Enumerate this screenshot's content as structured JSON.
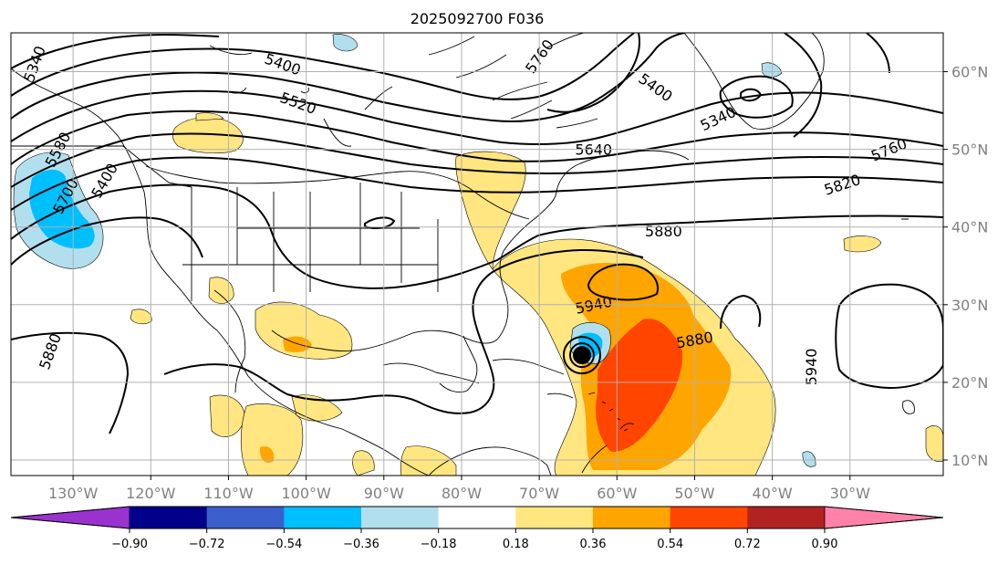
{
  "title": "2025092700 F036",
  "map": {
    "lon_range": [
      -138,
      -18
    ],
    "lat_range": [
      8,
      65
    ],
    "x_ticks": [
      {
        "lon": -130,
        "label": "130°W"
      },
      {
        "lon": -120,
        "label": "120°W"
      },
      {
        "lon": -110,
        "label": "110°W"
      },
      {
        "lon": -100,
        "label": "100°W"
      },
      {
        "lon": -90,
        "label": "90°W"
      },
      {
        "lon": -80,
        "label": "80°W"
      },
      {
        "lon": -70,
        "label": "70°W"
      },
      {
        "lon": -60,
        "label": "60°W"
      },
      {
        "lon": -50,
        "label": "50°W"
      },
      {
        "lon": -40,
        "label": "40°W"
      },
      {
        "lon": -30,
        "label": "30°W"
      }
    ],
    "y_ticks": [
      {
        "lat": 60,
        "label": "60°N"
      },
      {
        "lat": 50,
        "label": "50°N"
      },
      {
        "lat": 40,
        "label": "40°N"
      },
      {
        "lat": 30,
        "label": "30°N"
      },
      {
        "lat": 20,
        "label": "20°N"
      },
      {
        "lat": 10,
        "label": "10°N"
      }
    ],
    "grid": true,
    "contour_labels": [
      {
        "text": "5400",
        "lon": -126,
        "lat": 46,
        "rot": -60
      },
      {
        "text": "5400",
        "lon": -103,
        "lat": 61,
        "rot": 20
      },
      {
        "text": "5520",
        "lon": -101,
        "lat": 56,
        "rot": 20
      },
      {
        "text": "5580",
        "lon": -132,
        "lat": 50,
        "rot": -62
      },
      {
        "text": "5700",
        "lon": -131,
        "lat": 44,
        "rot": -62
      },
      {
        "text": "5760",
        "lon": -70,
        "lat": 62,
        "rot": -55
      },
      {
        "text": "5400",
        "lon": -55,
        "lat": 58,
        "rot": 35
      },
      {
        "text": "5340",
        "lon": -47,
        "lat": 54,
        "rot": -25
      },
      {
        "text": "5640",
        "lon": -63,
        "lat": 50,
        "rot": 0
      },
      {
        "text": "5760",
        "lon": -25,
        "lat": 50,
        "rot": -22
      },
      {
        "text": "5820",
        "lon": -31,
        "lat": 45.5,
        "rot": -18
      },
      {
        "text": "5880",
        "lon": -54,
        "lat": 39.5,
        "rot": 0
      },
      {
        "text": "5940",
        "lon": -63,
        "lat": 30,
        "rot": -12
      },
      {
        "text": "5880",
        "lon": -50,
        "lat": 25.5,
        "rot": -10
      },
      {
        "text": "5940",
        "lon": -35,
        "lat": 22,
        "rot": -90
      },
      {
        "text": "5880",
        "lon": -133,
        "lat": 24,
        "rot": -70
      },
      {
        "text": "5340",
        "lon": -135,
        "lat": 61,
        "rot": -70
      }
    ],
    "cyclone_center": {
      "lon": -64.5,
      "lat": 23.5
    }
  },
  "colorbar": {
    "levels": [
      -0.9,
      -0.72,
      -0.54,
      -0.36,
      -0.18,
      0.18,
      0.36,
      0.54,
      0.72,
      0.9
    ],
    "tick_labels": [
      "−0.90",
      "−0.72",
      "−0.54",
      "−0.36",
      "−0.18",
      "0.18",
      "0.36",
      "0.54",
      "0.72",
      "0.90"
    ],
    "colors": [
      "#9a32cd",
      "#00008b",
      "#3a5fcd",
      "#00bfff",
      "#b2dfee",
      "#ffffff",
      "#ffe680",
      "#ffa500",
      "#ff4500",
      "#b22222",
      "#ff82ab"
    ]
  }
}
